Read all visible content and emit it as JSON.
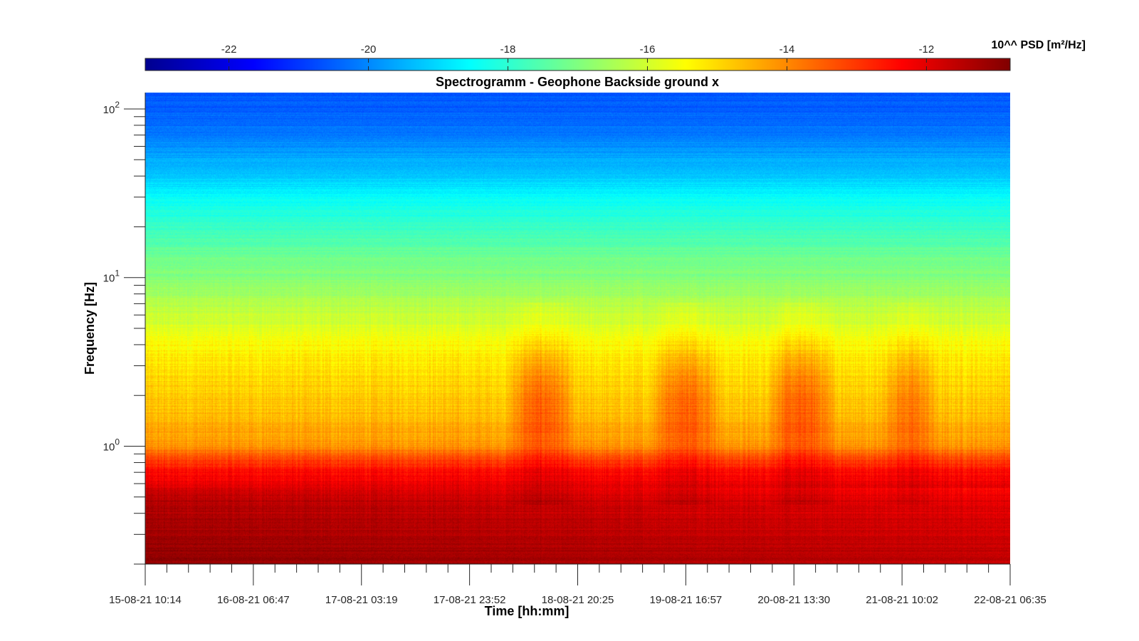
{
  "chart_data": {
    "type": "heatmap",
    "title": "Spectrogramm - Geophone Backside ground x",
    "xlabel": "Time [hh:mm]",
    "ylabel": "Frequency [Hz]",
    "colorbar_label": "10^^ PSD [m²/Hz]",
    "colormap": "jet",
    "color_range": [
      -23.2,
      -10.8
    ],
    "colorbar_ticks": [
      "-22",
      "-20",
      "-18",
      "-16",
      "-14",
      "-12"
    ],
    "colorbar_tick_values": [
      -22,
      -20,
      -18,
      -16,
      -14,
      -12
    ],
    "x_tick_labels": [
      "15-08-21 10:14",
      "16-08-21 06:47",
      "17-08-21 03:19",
      "17-08-21 23:52",
      "18-08-21 20:25",
      "19-08-21 16:57",
      "20-08-21 13:30",
      "21-08-21 10:02",
      "22-08-21 06:35"
    ],
    "x_range": [
      "15-08-21 10:14",
      "22-08-21 06:35"
    ],
    "y_scale": "log",
    "ylim": [
      0.2,
      125
    ],
    "y_ticks": [
      1,
      10,
      100
    ],
    "psd_profile_by_frequency": {
      "frequency_hz": [
        0.2,
        0.3,
        0.5,
        0.7,
        0.9,
        1.0,
        1.5,
        2.5,
        4.0,
        5.5,
        7.0,
        8.0,
        10,
        15,
        20,
        30,
        40,
        60,
        80,
        125
      ],
      "log10_psd": [
        -11.3,
        -11.5,
        -11.8,
        -12.4,
        -13.5,
        -14.2,
        -14.6,
        -15.0,
        -15.4,
        -16.0,
        -16.3,
        -16.6,
        -16.9,
        -17.4,
        -17.9,
        -18.5,
        -19.2,
        -19.9,
        -20.3,
        -20.6
      ]
    },
    "event_periods": [
      {
        "start": "18-08-21 07:00",
        "end": "18-08-21 20:00",
        "log10_psd_increase": 1.2
      },
      {
        "start": "19-08-21 10:00",
        "end": "20-08-21 00:00",
        "log10_psd_increase": 1.2
      },
      {
        "start": "20-08-21 08:00",
        "end": "20-08-21 22:00",
        "log10_psd_increase": 1.2
      },
      {
        "start": "21-08-21 06:00",
        "end": "21-08-21 17:00",
        "log10_psd_increase": 0.9
      }
    ]
  }
}
